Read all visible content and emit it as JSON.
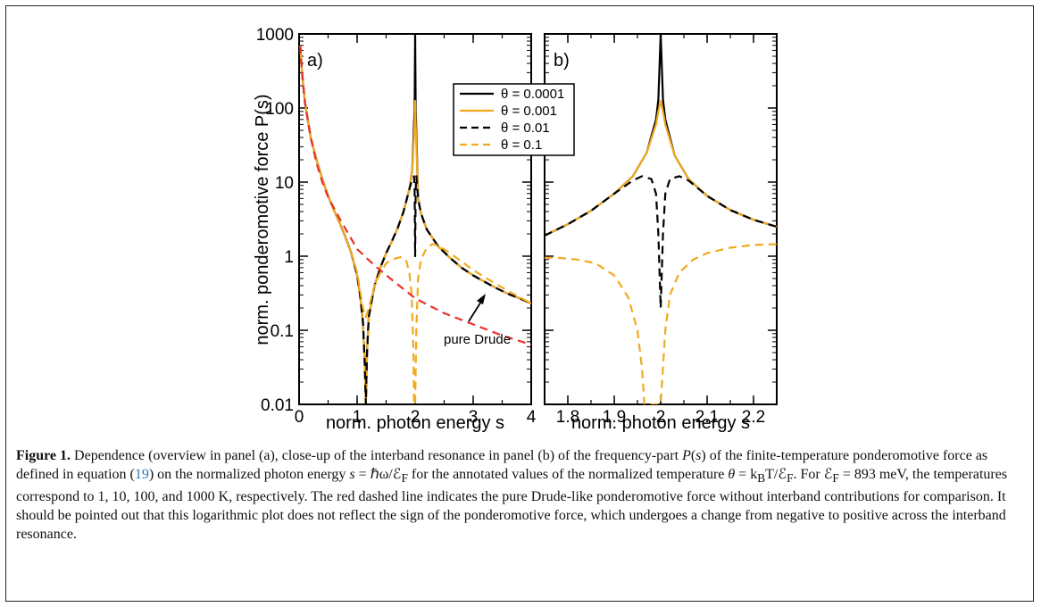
{
  "figure": {
    "caption_label": "Figure 1.",
    "caption_segments": [
      {
        "text": " Dependence (overview in panel (a), close-up of the interband resonance in panel (b) of the frequency-part "
      },
      {
        "text": "P",
        "style": "italic"
      },
      {
        "text": "("
      },
      {
        "text": "s",
        "style": "italic"
      },
      {
        "text": ") of the finite-temperature ponderomotive force as defined in equation ("
      },
      {
        "text": "19",
        "style": "link"
      },
      {
        "text": ") on the normalized photon energy "
      },
      {
        "text": "s",
        "style": "italic"
      },
      {
        "text": " = ℏω/ℰ"
      },
      {
        "text": "F",
        "style": "sub"
      },
      {
        "text": " for the annotated values of the normalized temperature "
      },
      {
        "text": "θ",
        "style": "italic"
      },
      {
        "text": " = k"
      },
      {
        "text": "B",
        "style": "sub"
      },
      {
        "text": "T/ℰ"
      },
      {
        "text": "F",
        "style": "sub"
      },
      {
        "text": ". For ℰ"
      },
      {
        "text": "F",
        "style": "sub"
      },
      {
        "text": " = 893 meV, the temperatures correspond to 1, 10, 100, and 1000 K, respectively. The red dashed line indicates the pure Drude-like ponderomotive force without interband contributions for comparison. It should be pointed out that this logarithmic plot does not reflect the sign of the ponderomotive force, which undergoes a change from negative to positive across the interband resonance."
      }
    ]
  },
  "colors": {
    "black": "#000000",
    "orange": "#f2a91f",
    "red": "#e8322a"
  },
  "chart_data": [
    {
      "type": "line",
      "panel_label": "a)",
      "xlabel": "norm. photon energy s",
      "ylabel": "norm. ponderomotive force P(s)",
      "xlim": [
        0,
        4
      ],
      "ylim": [
        0.01,
        1000
      ],
      "yscale": "log",
      "x_ticks": [
        "0",
        "1",
        "2",
        "3",
        "4"
      ],
      "y_ticks": [
        "0.01",
        "0.1",
        "1",
        "10",
        "100",
        "1000"
      ],
      "annotation": "pure Drude",
      "legend_position": "top-right",
      "series": [
        {
          "name": "θ = 0.0001",
          "color": "#000000",
          "dash": "solid",
          "x": [
            0.02,
            0.05,
            0.1,
            0.2,
            0.3,
            0.4,
            0.5,
            0.6,
            0.7,
            0.8,
            0.9,
            1.0,
            1.05,
            1.1,
            1.13,
            1.15,
            1.17,
            1.2,
            1.3,
            1.4,
            1.5,
            1.6,
            1.7,
            1.8,
            1.9,
            1.95,
            1.99,
            2.0,
            2.01,
            2.05,
            2.1,
            2.2,
            2.4,
            2.6,
            2.8,
            3.0,
            3.2,
            3.4,
            3.6,
            3.8,
            4.0
          ],
          "y": [
            700,
            300,
            120,
            40,
            20,
            11,
            6.5,
            4.2,
            2.8,
            1.8,
            1.1,
            0.55,
            0.3,
            0.13,
            0.04,
            0.01,
            0.05,
            0.15,
            0.4,
            0.7,
            1.1,
            1.6,
            2.4,
            4,
            8,
            15,
            100,
            1000,
            100,
            6,
            3.8,
            2.3,
            1.35,
            0.95,
            0.7,
            0.55,
            0.45,
            0.37,
            0.31,
            0.27,
            0.23
          ]
        },
        {
          "name": "θ = 0.001",
          "color": "#f2a91f",
          "dash": "solid",
          "x": [
            0.02,
            0.05,
            0.1,
            0.2,
            0.3,
            0.4,
            0.5,
            0.6,
            0.7,
            0.8,
            0.9,
            1.0,
            1.05,
            1.1,
            1.13,
            1.15,
            1.17,
            1.2,
            1.3,
            1.4,
            1.5,
            1.6,
            1.7,
            1.8,
            1.9,
            1.95,
            1.99,
            2.0,
            2.01,
            2.05,
            2.1,
            2.2,
            2.4,
            2.6,
            2.8,
            3.0,
            3.2,
            3.4,
            3.6,
            3.8,
            4.0
          ],
          "y": [
            700,
            300,
            120,
            40,
            20,
            11,
            6.5,
            4.2,
            2.8,
            1.8,
            1.1,
            0.55,
            0.3,
            0.13,
            0.04,
            0.01,
            0.05,
            0.15,
            0.4,
            0.7,
            1.1,
            1.6,
            2.4,
            4,
            8,
            15,
            60,
            125,
            60,
            6,
            3.8,
            2.3,
            1.35,
            0.95,
            0.7,
            0.55,
            0.45,
            0.37,
            0.31,
            0.27,
            0.23
          ]
        },
        {
          "name": "θ = 0.01",
          "color": "#000000",
          "dash": "dashed",
          "x": [
            0.02,
            0.05,
            0.1,
            0.2,
            0.3,
            0.4,
            0.5,
            0.6,
            0.7,
            0.8,
            0.9,
            1.0,
            1.05,
            1.1,
            1.13,
            1.15,
            1.17,
            1.2,
            1.3,
            1.4,
            1.5,
            1.6,
            1.7,
            1.8,
            1.9,
            1.95,
            1.98,
            1.99,
            2.0,
            2.01,
            2.02,
            2.05,
            2.1,
            2.2,
            2.4,
            2.6,
            2.8,
            3.0,
            3.2,
            3.4,
            3.6,
            3.8,
            4.0
          ],
          "y": [
            700,
            300,
            120,
            40,
            20,
            11,
            6.5,
            4.2,
            2.8,
            1.8,
            1.1,
            0.55,
            0.3,
            0.13,
            0.04,
            0.01,
            0.05,
            0.15,
            0.4,
            0.7,
            1.1,
            1.6,
            2.4,
            4,
            8,
            11,
            12,
            8,
            1,
            8,
            12,
            6,
            3.8,
            2.3,
            1.35,
            0.95,
            0.7,
            0.55,
            0.45,
            0.37,
            0.31,
            0.27,
            0.23
          ]
        },
        {
          "name": "θ = 0.1",
          "color": "#f2a91f",
          "dash": "dashed",
          "x": [
            0.02,
            0.05,
            0.1,
            0.2,
            0.3,
            0.4,
            0.5,
            0.6,
            0.7,
            0.8,
            0.9,
            1.0,
            1.05,
            1.1,
            1.15,
            1.2,
            1.3,
            1.4,
            1.5,
            1.6,
            1.7,
            1.75,
            1.8,
            1.85,
            1.9,
            1.94,
            1.97,
            1.98,
            1.99,
            2.0,
            2.02,
            2.05,
            2.1,
            2.2,
            2.3,
            2.4,
            2.6,
            2.8,
            3.0,
            3.2,
            3.4,
            3.6,
            3.8,
            4.0
          ],
          "y": [
            700,
            300,
            120,
            40,
            20,
            11,
            6.5,
            4.2,
            2.8,
            1.8,
            1.1,
            0.6,
            0.35,
            0.2,
            0.15,
            0.2,
            0.4,
            0.6,
            0.8,
            0.9,
            0.95,
            0.97,
            0.95,
            0.85,
            0.6,
            0.3,
            0.05,
            0.01,
            0.01,
            0.01,
            0.1,
            0.5,
            0.9,
            1.3,
            1.45,
            1.4,
            1.1,
            0.85,
            0.65,
            0.52,
            0.42,
            0.34,
            0.28,
            0.23
          ]
        },
        {
          "name": "pure Drude",
          "color": "#e8322a",
          "dash": "dashed",
          "x": [
            0.02,
            0.05,
            0.1,
            0.2,
            0.3,
            0.4,
            0.5,
            0.7,
            1.0,
            1.3,
            1.6,
            2.0,
            2.5,
            3.0,
            3.5,
            4.0
          ],
          "y": [
            700,
            300,
            120,
            40,
            18,
            10,
            6.3,
            3.2,
            1.25,
            0.75,
            0.48,
            0.27,
            0.17,
            0.12,
            0.085,
            0.064
          ]
        }
      ]
    },
    {
      "type": "line",
      "panel_label": "b)",
      "xlabel": "norm. photon energy s",
      "xlim": [
        1.75,
        2.25
      ],
      "ylim": [
        0.01,
        1000
      ],
      "yscale": "log",
      "x_ticks": [
        "1.8",
        "1.9",
        "2",
        "2.1",
        "2.2"
      ],
      "legend_position": "none",
      "series": [
        {
          "name": "θ = 0.0001",
          "color": "#000000",
          "dash": "solid",
          "x": [
            1.75,
            1.8,
            1.85,
            1.9,
            1.94,
            1.97,
            1.99,
            1.995,
            2.0,
            2.005,
            2.01,
            2.03,
            2.06,
            2.1,
            2.15,
            2.2,
            2.25
          ],
          "y": [
            1.9,
            2.7,
            4.1,
            7,
            12,
            25,
            70,
            130,
            1000,
            130,
            70,
            23,
            11,
            6.5,
            4.2,
            3.1,
            2.5
          ]
        },
        {
          "name": "θ = 0.001",
          "color": "#f2a91f",
          "dash": "solid",
          "x": [
            1.75,
            1.8,
            1.85,
            1.9,
            1.94,
            1.97,
            1.99,
            1.995,
            2.0,
            2.005,
            2.01,
            2.03,
            2.06,
            2.1,
            2.15,
            2.2,
            2.25
          ],
          "y": [
            1.9,
            2.7,
            4.1,
            7,
            12,
            25,
            60,
            90,
            125,
            90,
            60,
            23,
            11,
            6.5,
            4.2,
            3.1,
            2.5
          ]
        },
        {
          "name": "θ = 0.01",
          "color": "#000000",
          "dash": "dashed",
          "x": [
            1.75,
            1.8,
            1.85,
            1.9,
            1.94,
            1.96,
            1.98,
            1.99,
            1.995,
            2.0,
            2.005,
            2.01,
            2.02,
            2.04,
            2.06,
            2.1,
            2.15,
            2.2,
            2.25
          ],
          "y": [
            1.9,
            2.7,
            4.1,
            7,
            10.5,
            12,
            11,
            7,
            2,
            0.2,
            2,
            7,
            11,
            12,
            10.5,
            6.5,
            4.2,
            3.1,
            2.5
          ]
        },
        {
          "name": "θ = 0.1",
          "color": "#f2a91f",
          "dash": "dashed",
          "x": [
            1.75,
            1.78,
            1.82,
            1.86,
            1.9,
            1.93,
            1.95,
            1.96,
            1.965,
            1.97,
            2.0,
            2.01,
            2.02,
            2.04,
            2.07,
            2.1,
            2.15,
            2.2,
            2.25
          ],
          "y": [
            0.95,
            0.95,
            0.9,
            0.8,
            0.55,
            0.28,
            0.1,
            0.03,
            0.01,
            0.01,
            0.01,
            0.1,
            0.3,
            0.6,
            0.9,
            1.1,
            1.3,
            1.42,
            1.45
          ]
        }
      ]
    }
  ]
}
